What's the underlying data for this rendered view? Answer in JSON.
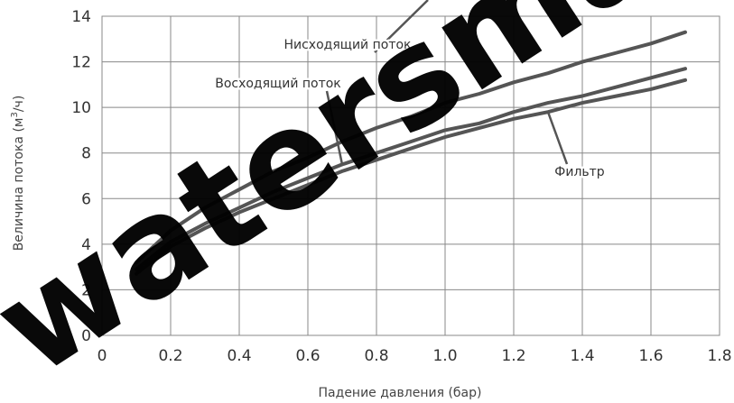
{
  "chart_data": {
    "type": "line",
    "title": "",
    "xlabel": "Падение давления (бар)",
    "ylabel": "Величина потока (м",
    "ylabel_sup": "3",
    "ylabel_tail": "/ч)",
    "xlim": [
      0,
      1.8
    ],
    "ylim": [
      0,
      14
    ],
    "x_ticks": [
      "0",
      "0.2",
      "0.4",
      "0.6",
      "0.8",
      "1.0",
      "1.2",
      "1.4",
      "1.6",
      "1.8"
    ],
    "y_ticks": [
      "0",
      "2",
      "4",
      "6",
      "8",
      "10",
      "12",
      "14"
    ],
    "grid": true,
    "legend": "none",
    "line_color": "#555555",
    "series": [
      {
        "name": "Нисходящий поток",
        "x": [
          0.1,
          0.2,
          0.3,
          0.4,
          0.5,
          0.6,
          0.7,
          0.8,
          0.9,
          1.0,
          1.1,
          1.2,
          1.3,
          1.4,
          1.5,
          1.6,
          1.7
        ],
        "values": [
          3.2,
          4.6,
          5.6,
          6.4,
          7.2,
          7.8,
          8.5,
          9.1,
          9.6,
          10.2,
          10.6,
          11.1,
          11.5,
          12.0,
          12.4,
          12.8,
          13.3
        ]
      },
      {
        "name": "Восходящий поток",
        "x": [
          0.1,
          0.2,
          0.3,
          0.4,
          0.5,
          0.6,
          0.7,
          0.8,
          0.9,
          1.0,
          1.1,
          1.2,
          1.3,
          1.4,
          1.5,
          1.6,
          1.7
        ],
        "values": [
          2.9,
          4.1,
          4.9,
          5.6,
          6.3,
          6.9,
          7.5,
          8.0,
          8.5,
          9.0,
          9.3,
          9.8,
          10.2,
          10.5,
          10.9,
          11.3,
          11.7
        ]
      },
      {
        "name": "Фильтр",
        "x": [
          0.1,
          0.2,
          0.3,
          0.4,
          0.5,
          0.6,
          0.7,
          0.8,
          0.9,
          1.0,
          1.1,
          1.2,
          1.3,
          1.4,
          1.5,
          1.6,
          1.7
        ],
        "values": [
          2.7,
          3.9,
          4.7,
          5.4,
          6.0,
          6.6,
          7.2,
          7.7,
          8.2,
          8.7,
          9.1,
          9.5,
          9.8,
          10.2,
          10.5,
          10.8,
          11.2
        ]
      }
    ],
    "annotations": [
      {
        "text": "Нисходящий поток",
        "series": 0,
        "point_x": 0.95
      },
      {
        "text": "Восходящий поток",
        "series": 1,
        "point_x": 0.7
      },
      {
        "text": "Фильтр",
        "series": 2,
        "point_x": 1.3
      }
    ]
  },
  "watermark": {
    "text": "watersmart"
  }
}
